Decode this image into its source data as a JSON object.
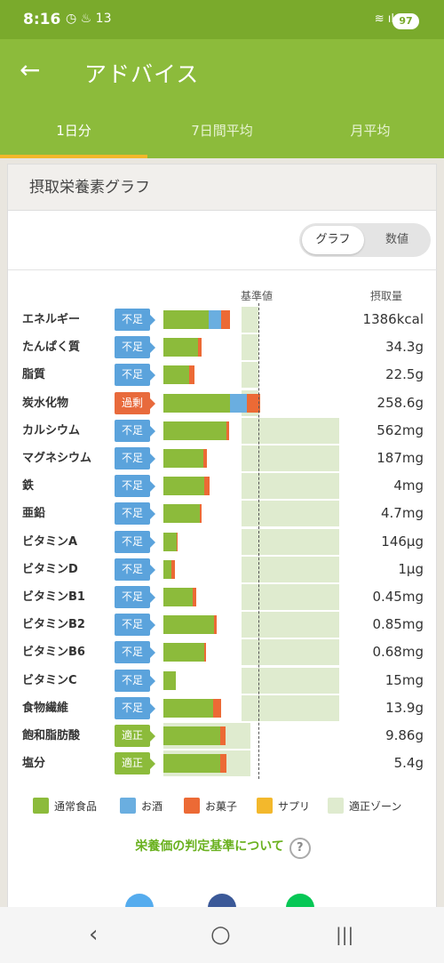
{
  "status": {
    "time": "8:16",
    "left_icons": "◷ ♨ 13",
    "right_icons": "≋ ıl",
    "battery": "97"
  },
  "appbar": {
    "back": "←",
    "title": "アドバイス"
  },
  "tabs": [
    {
      "label": "1日分",
      "active": true
    },
    {
      "label": "7日間平均",
      "active": false
    },
    {
      "label": "月平均",
      "active": false
    }
  ],
  "card": {
    "title": "摂取栄養素グラフ"
  },
  "toggle": {
    "graph": "グラフ",
    "values": "数値"
  },
  "columns": {
    "standard": "基準値",
    "amount": "摂取量"
  },
  "colors": {
    "food": "#8cbb3b",
    "alcohol": "#6aaee0",
    "sweets": "#ec6a35",
    "supplement": "#f3b82c",
    "zone": "#dfebcf",
    "under": "#5ba3dc",
    "over": "#e86a3c",
    "ok": "#8cbb3b"
  },
  "nutrients": [
    {
      "name": "エネルギー",
      "status": "不足",
      "type": "under",
      "amount": "1386kcal",
      "food": 0.48,
      "alcohol": 0.13,
      "sweets": 0.09,
      "zone": [
        0.82,
        1.0
      ]
    },
    {
      "name": "たんぱく質",
      "status": "不足",
      "type": "under",
      "amount": "34.3g",
      "food": 0.36,
      "alcohol": 0,
      "sweets": 0.04,
      "zone": [
        0.82,
        1.0
      ]
    },
    {
      "name": "脂質",
      "status": "不足",
      "type": "under",
      "amount": "22.5g",
      "food": 0.27,
      "alcohol": 0,
      "sweets": 0.06,
      "zone": [
        0.82,
        1.0
      ]
    },
    {
      "name": "炭水化物",
      "status": "過剰",
      "type": "over",
      "amount": "258.6g",
      "food": 0.7,
      "alcohol": 0.18,
      "sweets": 0.14,
      "zone": [
        0.82,
        1.0
      ]
    },
    {
      "name": "カルシウム",
      "status": "不足",
      "type": "under",
      "amount": "562mg",
      "food": 0.66,
      "alcohol": 0,
      "sweets": 0.03,
      "zone": [
        0.82,
        1.85
      ]
    },
    {
      "name": "マグネシウム",
      "status": "不足",
      "type": "under",
      "amount": "187mg",
      "food": 0.42,
      "alcohol": 0,
      "sweets": 0.04,
      "zone": [
        0.82,
        1.85
      ]
    },
    {
      "name": "鉄",
      "status": "不足",
      "type": "under",
      "amount": "4mg",
      "food": 0.43,
      "alcohol": 0,
      "sweets": 0.06,
      "zone": [
        0.82,
        1.85
      ]
    },
    {
      "name": "亜鉛",
      "status": "不足",
      "type": "under",
      "amount": "4.7mg",
      "food": 0.38,
      "alcohol": 0,
      "sweets": 0.02,
      "zone": [
        0.82,
        1.85
      ]
    },
    {
      "name": "ビタミンA",
      "status": "不足",
      "type": "under",
      "amount": "146μg",
      "food": 0.14,
      "alcohol": 0,
      "sweets": 0.01,
      "zone": [
        0.82,
        1.85
      ]
    },
    {
      "name": "ビタミンD",
      "status": "不足",
      "type": "under",
      "amount": "1μg",
      "food": 0.08,
      "alcohol": 0,
      "sweets": 0.04,
      "zone": [
        0.82,
        1.85
      ]
    },
    {
      "name": "ビタミンB1",
      "status": "不足",
      "type": "under",
      "amount": "0.45mg",
      "food": 0.31,
      "alcohol": 0,
      "sweets": 0.04,
      "zone": [
        0.82,
        1.85
      ]
    },
    {
      "name": "ビタミンB2",
      "status": "不足",
      "type": "under",
      "amount": "0.85mg",
      "food": 0.53,
      "alcohol": 0,
      "sweets": 0.03,
      "zone": [
        0.82,
        1.85
      ]
    },
    {
      "name": "ビタミンB6",
      "status": "不足",
      "type": "under",
      "amount": "0.68mg",
      "food": 0.43,
      "alcohol": 0,
      "sweets": 0.02,
      "zone": [
        0.82,
        1.85
      ]
    },
    {
      "name": "ビタミンC",
      "status": "不足",
      "type": "under",
      "amount": "15mg",
      "food": 0.13,
      "alcohol": 0,
      "sweets": 0,
      "zone": [
        0.82,
        1.85
      ]
    },
    {
      "name": "食物繊維",
      "status": "不足",
      "type": "under",
      "amount": "13.9g",
      "food": 0.52,
      "alcohol": 0,
      "sweets": 0.09,
      "zone": [
        0.82,
        1.85
      ]
    },
    {
      "name": "飽和脂肪酸",
      "status": "適正",
      "type": "ok",
      "amount": "9.86g",
      "food": 0.6,
      "alcohol": 0,
      "sweets": 0.05,
      "zone": [
        0,
        0.92
      ]
    },
    {
      "name": "塩分",
      "status": "適正",
      "type": "ok",
      "amount": "5.4g",
      "food": 0.6,
      "alcohol": 0,
      "sweets": 0.06,
      "zone": [
        0,
        0.92
      ]
    }
  ],
  "legend": [
    {
      "label": "通常食品",
      "color": "#8cbb3b"
    },
    {
      "label": "お酒",
      "color": "#6aaee0"
    },
    {
      "label": "お菓子",
      "color": "#ec6a35"
    },
    {
      "label": "サプリ",
      "color": "#f3b82c"
    },
    {
      "label": "適正ゾーン",
      "color": "#dfebcf"
    }
  ],
  "link": {
    "text": "栄養価の判定基準について",
    "icon": "?"
  },
  "share": [
    {
      "name": "twitter-icon",
      "color": "#55acee"
    },
    {
      "name": "facebook-icon",
      "color": "#3b5998"
    },
    {
      "name": "line-icon",
      "color": "#06c755"
    }
  ],
  "navbar": {
    "back": "‹",
    "home": "○",
    "recent": "|||"
  }
}
